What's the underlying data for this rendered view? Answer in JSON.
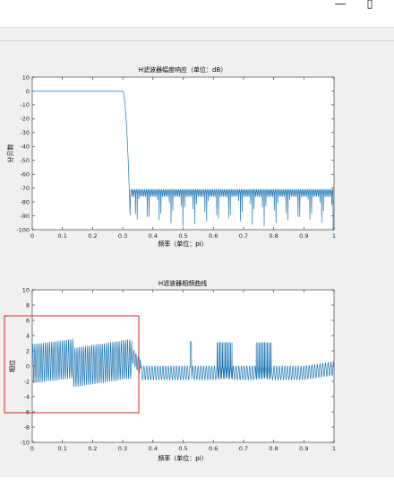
{
  "window": {
    "minimize_glyph": "—",
    "maximize_glyph": "▯"
  },
  "plots": [
    {
      "title": "H滤波器幅度响应（单位：dB）",
      "xlabel": "频率（单位：pi）",
      "ylabel": "分贝数",
      "xlim": [
        0,
        1
      ],
      "ylim": [
        -100,
        10
      ],
      "xticks": [
        "0",
        "0.1",
        "0.2",
        "0.3",
        "0.4",
        "0.5",
        "0.6",
        "0.7",
        "0.8",
        "0.9",
        "1"
      ],
      "yticks": [
        "10",
        "0",
        "-10",
        "-20",
        "-30",
        "-40",
        "-50",
        "-60",
        "-70",
        "-80",
        "-90",
        "-100"
      ]
    },
    {
      "title": "H滤波器相频曲线",
      "xlabel": "频率（单位：pi）",
      "ylabel": "相位",
      "xlim": [
        0,
        1
      ],
      "ylim": [
        -10,
        10
      ],
      "xticks": [
        "0",
        "0.1",
        "0.2",
        "0.3",
        "0.4",
        "0.5",
        "0.6",
        "0.7",
        "0.8",
        "0.9",
        "1"
      ],
      "yticks": [
        "10",
        "8",
        "6",
        "4",
        "2",
        "0",
        "-2",
        "-4",
        "-6",
        "-8",
        "-10"
      ]
    }
  ],
  "chart_data": [
    {
      "type": "line",
      "title": "H滤波器幅度响应（单位：dB）",
      "xlabel": "频率（单位：pi）",
      "ylabel": "分贝数",
      "xlim": [
        0,
        1
      ],
      "ylim": [
        -100,
        10
      ],
      "grid": false,
      "series": [
        {
          "color": "#1f77b4",
          "x": [
            0,
            0.05,
            0.1,
            0.15,
            0.2,
            0.25,
            0.3,
            0.31,
            0.315,
            0.32,
            0.325,
            0.33,
            0.4,
            0.5,
            0.6,
            0.7,
            0.8,
            0.9,
            1.0
          ],
          "y": [
            0,
            0,
            0,
            0,
            0,
            0,
            0,
            -3,
            -30,
            -70,
            -90,
            -75,
            -78,
            -75,
            -78,
            -75,
            -78,
            -72,
            -100
          ]
        }
      ]
    },
    {
      "type": "line",
      "title": "H滤波器相频曲线",
      "xlabel": "频率（单位：pi）",
      "ylabel": "相位",
      "xlim": [
        0,
        1
      ],
      "ylim": [
        -10,
        10
      ],
      "grid": false,
      "series": [
        {
          "color": "#1f77b4",
          "x": [
            0,
            0.1,
            0.13,
            0.2,
            0.3,
            0.33,
            0.35,
            0.4,
            0.5,
            0.53,
            0.6,
            0.7,
            0.8,
            0.9,
            1.0
          ],
          "y": [
            0,
            1,
            -1,
            0,
            1,
            2,
            0,
            -1,
            -1,
            3,
            -1,
            -1,
            -1,
            -0.5,
            0
          ]
        }
      ]
    }
  ],
  "annotation": {
    "color": "#d62728"
  }
}
